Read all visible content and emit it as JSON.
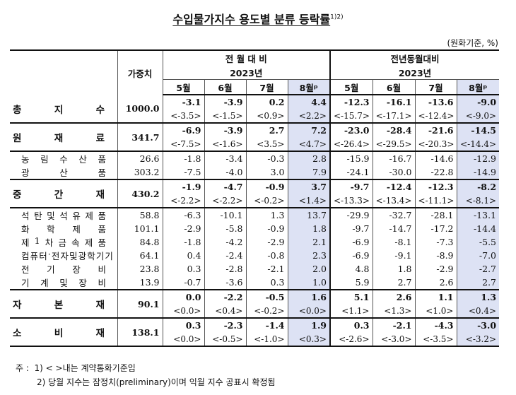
{
  "title": "수입물가지수 용도별 분류 등락률",
  "title_sup": "1)2)",
  "unit": "(원화기준, %)",
  "header": {
    "weight": "가중치",
    "group1": "전 월 대 비",
    "group2": "전년동월대비",
    "year": "2023년",
    "months": [
      "5월",
      "6월",
      "7월",
      "8월ᵖ"
    ]
  },
  "rows": [
    {
      "label": "총 지 수",
      "type": "main",
      "weight": "1000.0",
      "vals": [
        "-3.1",
        "-3.9",
        "0.2",
        "4.4",
        "-12.3",
        "-16.1",
        "-13.6",
        "-9.0"
      ],
      "contract": [
        "<-3.5>",
        "<-1.5>",
        "<0.9>",
        "<2.2>",
        "<-15.7>",
        "<-17.1>",
        "<-12.4>",
        "<-9.0>"
      ]
    },
    {
      "label": "원 재 료",
      "type": "main",
      "weight": "341.7",
      "vals": [
        "-6.9",
        "-3.9",
        "2.7",
        "7.2",
        "-23.0",
        "-28.4",
        "-21.6",
        "-14.5"
      ],
      "contract": [
        "<-7.5>",
        "<-1.6>",
        "<3.5>",
        "<4.7>",
        "<-26.4>",
        "<-29.5>",
        "<-20.3>",
        "<-14.4>"
      ]
    },
    {
      "label": "농 림 수 산 품",
      "type": "sub",
      "weight": "26.6",
      "vals": [
        "-1.8",
        "-3.4",
        "-0.3",
        "2.8",
        "-15.9",
        "-16.7",
        "-14.6",
        "-12.9"
      ]
    },
    {
      "label": "광 산 품",
      "type": "sub",
      "weight": "303.2",
      "vals": [
        "-7.5",
        "-4.0",
        "3.0",
        "7.9",
        "-24.1",
        "-30.0",
        "-22.8",
        "-14.9"
      ]
    },
    {
      "label": "중 간 재",
      "type": "main",
      "weight": "430.2",
      "vals": [
        "-1.9",
        "-4.7",
        "-0.9",
        "3.7",
        "-9.7",
        "-12.4",
        "-12.3",
        "-8.2"
      ],
      "contract": [
        "<-2.2>",
        "<-2.2>",
        "<-0.2>",
        "<1.4>",
        "<-13.3>",
        "<-13.4>",
        "<-11.1>",
        "<-8.1>"
      ]
    },
    {
      "label": "석탄및석유제품",
      "type": "sub",
      "weight": "58.8",
      "vals": [
        "-6.3",
        "-10.1",
        "1.3",
        "13.7",
        "-29.9",
        "-32.7",
        "-28.1",
        "-13.1"
      ]
    },
    {
      "label": "화 학 제 품",
      "type": "sub",
      "weight": "101.1",
      "vals": [
        "-2.9",
        "-5.8",
        "-0.9",
        "1.8",
        "-9.7",
        "-14.7",
        "-17.2",
        "-14.4"
      ]
    },
    {
      "label": "제1차금속제품",
      "type": "sub",
      "weight": "84.8",
      "vals": [
        "-1.8",
        "-4.2",
        "-2.9",
        "2.1",
        "-6.9",
        "-8.1",
        "-7.3",
        "-5.5"
      ]
    },
    {
      "label": "컴퓨터·전자및광학기기",
      "type": "sub",
      "weight": "64.1",
      "vals": [
        "0.4",
        "-2.4",
        "-0.8",
        "2.3",
        "-6.9",
        "-9.1",
        "-8.9",
        "-7.0"
      ]
    },
    {
      "label": "전 기 장 비",
      "type": "sub",
      "weight": "23.8",
      "vals": [
        "0.3",
        "-2.8",
        "-2.1",
        "2.0",
        "4.8",
        "1.8",
        "-2.9",
        "-2.7"
      ]
    },
    {
      "label": "기 계 및 장 비",
      "type": "sub",
      "weight": "13.9",
      "vals": [
        "-0.7",
        "-3.6",
        "0.3",
        "1.0",
        "5.9",
        "2.7",
        "2.6",
        "2.7"
      ]
    },
    {
      "label": "자 본 재",
      "type": "main",
      "weight": "90.1",
      "vals": [
        "0.0",
        "-2.2",
        "-0.5",
        "1.6",
        "5.1",
        "2.6",
        "1.1",
        "1.3"
      ],
      "contract": [
        "<0.0>",
        "<0.4>",
        "<-0.2>",
        "<0.0>",
        "<1.1>",
        "<1.3>",
        "<1.0>",
        "<0.4>"
      ]
    },
    {
      "label": "소 비 재",
      "type": "main",
      "weight": "138.1",
      "vals": [
        "0.3",
        "-2.3",
        "-1.4",
        "1.9",
        "0.3",
        "-2.1",
        "-4.3",
        "-3.0"
      ],
      "contract": [
        "<0.0>",
        "<-0.5>",
        "<-1.0>",
        "<0.3>",
        "<-2.6>",
        "<-3.0>",
        "<-3.5>",
        "<-3.2>"
      ]
    }
  ],
  "notes": {
    "prefix": "주 :",
    "n1": "1) < >내는 계약통화기준임",
    "n2": "2) 당월 지수는 잠정치(preliminary)이며 익월 지수 공표시 확정됨"
  },
  "colors": {
    "highlight": "#dde2f4"
  }
}
